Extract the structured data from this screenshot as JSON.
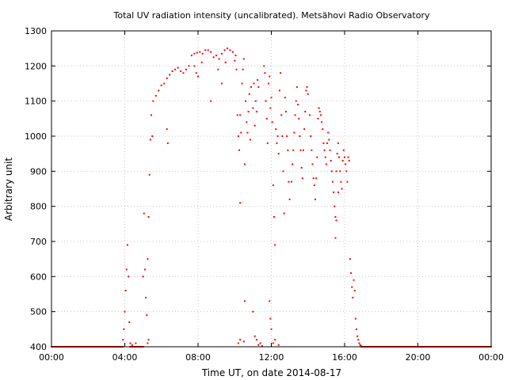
{
  "chart_data": {
    "type": "scatter",
    "title": "Total UV radiation intensity (uncalibrated). Metsähovi Radio Observatory",
    "xlabel": "Time UT, on date 2014-08-17",
    "ylabel": "Arbitrary unit",
    "xlim": [
      0,
      24
    ],
    "ylim": [
      400,
      1300
    ],
    "x_ticks": [
      0,
      4,
      8,
      12,
      16,
      20,
      24
    ],
    "x_tick_labels": [
      "00:00",
      "04:00",
      "08:00",
      "12:00",
      "16:00",
      "20:00",
      "00:00"
    ],
    "y_ticks": [
      400,
      500,
      600,
      700,
      800,
      900,
      1000,
      1100,
      1200,
      1300
    ],
    "y_tick_labels": [
      "400",
      "500",
      "600",
      "700",
      "800",
      "900",
      "1000",
      "1100",
      "1200",
      "1300"
    ],
    "grid": true,
    "marker_color": "#ff0000",
    "series": [
      {
        "points": [
          [
            3.9,
            420
          ],
          [
            3.95,
            450
          ],
          [
            4.0,
            500
          ],
          [
            4.05,
            560
          ],
          [
            4.1,
            620
          ],
          [
            4.15,
            690
          ],
          [
            4.2,
            600
          ],
          [
            4.25,
            470
          ],
          [
            4.3,
            410
          ],
          [
            4.4,
            405
          ],
          [
            4.6,
            410
          ],
          [
            4.8,
            400
          ],
          [
            5.0,
            600
          ],
          [
            5.05,
            780
          ],
          [
            5.1,
            620
          ],
          [
            5.15,
            540
          ],
          [
            5.2,
            490
          ],
          [
            5.25,
            650
          ],
          [
            5.3,
            770
          ],
          [
            5.35,
            890
          ],
          [
            5.4,
            990
          ],
          [
            5.45,
            1060
          ],
          [
            5.5,
            1000
          ],
          [
            5.25,
            410
          ],
          [
            5.3,
            420
          ],
          [
            5.55,
            1100
          ],
          [
            5.7,
            1115
          ],
          [
            5.85,
            1130
          ],
          [
            6.0,
            1145
          ],
          [
            6.15,
            1150
          ],
          [
            6.3,
            1165
          ],
          [
            6.45,
            1175
          ],
          [
            6.6,
            1185
          ],
          [
            6.75,
            1190
          ],
          [
            6.9,
            1195
          ],
          [
            7.05,
            1185
          ],
          [
            7.2,
            1180
          ],
          [
            7.35,
            1190
          ],
          [
            7.5,
            1200
          ],
          [
            7.65,
            1230
          ],
          [
            7.8,
            1235
          ],
          [
            7.95,
            1238
          ],
          [
            8.1,
            1240
          ],
          [
            8.25,
            1235
          ],
          [
            8.4,
            1245
          ],
          [
            8.55,
            1245
          ],
          [
            8.7,
            1240
          ],
          [
            8.85,
            1225
          ],
          [
            9.0,
            1230
          ],
          [
            9.15,
            1220
          ],
          [
            9.3,
            1235
          ],
          [
            9.45,
            1245
          ],
          [
            9.6,
            1250
          ],
          [
            9.75,
            1245
          ],
          [
            9.9,
            1240
          ],
          [
            10.05,
            1230
          ],
          [
            6.3,
            1020
          ],
          [
            6.35,
            980
          ],
          [
            7.8,
            1200
          ],
          [
            7.9,
            1180
          ],
          [
            8.0,
            1170
          ],
          [
            8.2,
            1210
          ],
          [
            8.7,
            1100
          ],
          [
            9.1,
            1190
          ],
          [
            9.3,
            1150
          ],
          [
            9.5,
            1210
          ],
          [
            10.0,
            1215
          ],
          [
            10.1,
            1190
          ],
          [
            10.15,
            1060
          ],
          [
            10.2,
            1000
          ],
          [
            10.25,
            960
          ],
          [
            10.3,
            1060
          ],
          [
            10.3,
            810
          ],
          [
            10.35,
            1010
          ],
          [
            10.4,
            1150
          ],
          [
            10.45,
            1190
          ],
          [
            10.5,
            1220
          ],
          [
            10.55,
            920
          ],
          [
            10.55,
            530
          ],
          [
            10.6,
            1100
          ],
          [
            10.65,
            1040
          ],
          [
            10.7,
            1010
          ],
          [
            10.75,
            1070
          ],
          [
            10.8,
            1120
          ],
          [
            10.85,
            990
          ],
          [
            10.9,
            1140
          ],
          [
            11.0,
            1080
          ],
          [
            11.05,
            1150
          ],
          [
            11.1,
            1030
          ],
          [
            11.15,
            1100
          ],
          [
            11.2,
            1070
          ],
          [
            11.25,
            1160
          ],
          [
            11.3,
            1140
          ],
          [
            10.2,
            410
          ],
          [
            10.3,
            420
          ],
          [
            10.5,
            415
          ],
          [
            11.0,
            500
          ],
          [
            11.1,
            430
          ],
          [
            11.2,
            420
          ],
          [
            11.3,
            405
          ],
          [
            11.4,
            410
          ],
          [
            11.5,
            402
          ],
          [
            11.6,
            1200
          ],
          [
            11.65,
            1180
          ],
          [
            11.7,
            1100
          ],
          [
            11.75,
            1050
          ],
          [
            11.8,
            980
          ],
          [
            11.85,
            1150
          ],
          [
            11.9,
            1170
          ],
          [
            11.95,
            1080
          ],
          [
            12.0,
            1110
          ],
          [
            12.05,
            1040
          ],
          [
            12.1,
            860
          ],
          [
            12.15,
            770
          ],
          [
            12.2,
            690
          ],
          [
            12.25,
            1020
          ],
          [
            12.3,
            980
          ],
          [
            12.35,
            1000
          ],
          [
            12.4,
            950
          ],
          [
            12.45,
            1130
          ],
          [
            12.5,
            1180
          ],
          [
            12.55,
            1060
          ],
          [
            12.6,
            1000
          ],
          [
            12.65,
            900
          ],
          [
            12.7,
            780
          ],
          [
            12.75,
            1110
          ],
          [
            12.8,
            1070
          ],
          [
            12.85,
            1000
          ],
          [
            12.9,
            960
          ],
          [
            12.95,
            870
          ],
          [
            11.9,
            530
          ],
          [
            11.95,
            480
          ],
          [
            12.0,
            450
          ],
          [
            12.1,
            410
          ],
          [
            12.2,
            420
          ],
          [
            12.4,
            405
          ],
          [
            13.0,
            820
          ],
          [
            13.1,
            870
          ],
          [
            13.15,
            920
          ],
          [
            13.2,
            960
          ],
          [
            13.25,
            1010
          ],
          [
            13.3,
            1060
          ],
          [
            13.35,
            1100
          ],
          [
            13.4,
            1140
          ],
          [
            13.45,
            1090
          ],
          [
            13.5,
            1050
          ],
          [
            13.55,
            1000
          ],
          [
            13.6,
            960
          ],
          [
            13.65,
            910
          ],
          [
            13.7,
            880
          ],
          [
            13.75,
            960
          ],
          [
            13.8,
            1020
          ],
          [
            13.85,
            1070
          ],
          [
            13.9,
            1130
          ],
          [
            13.95,
            1140
          ],
          [
            14.0,
            1120
          ],
          [
            14.1,
            1060
          ],
          [
            14.15,
            1000
          ],
          [
            14.2,
            960
          ],
          [
            14.25,
            920
          ],
          [
            14.3,
            880
          ],
          [
            14.35,
            860
          ],
          [
            14.4,
            820
          ],
          [
            14.45,
            880
          ],
          [
            14.5,
            940
          ],
          [
            14.55,
            1050
          ],
          [
            14.6,
            1080
          ],
          [
            14.65,
            1070
          ],
          [
            14.7,
            1060
          ],
          [
            14.75,
            1040
          ],
          [
            14.8,
            1020
          ],
          [
            14.85,
            980
          ],
          [
            14.9,
            960
          ],
          [
            14.95,
            940
          ],
          [
            15.0,
            920
          ],
          [
            15.05,
            980
          ],
          [
            15.1,
            1010
          ],
          [
            15.15,
            990
          ],
          [
            15.2,
            960
          ],
          [
            15.25,
            930
          ],
          [
            15.3,
            900
          ],
          [
            15.35,
            870
          ],
          [
            15.4,
            840
          ],
          [
            15.45,
            800
          ],
          [
            15.5,
            770
          ],
          [
            15.55,
            900
          ],
          [
            15.6,
            950
          ],
          [
            15.65,
            980
          ],
          [
            15.7,
            940
          ],
          [
            15.75,
            900
          ],
          [
            15.8,
            870
          ],
          [
            15.85,
            850
          ],
          [
            15.9,
            930
          ],
          [
            15.95,
            960
          ],
          [
            16.0,
            940
          ],
          [
            16.05,
            920
          ],
          [
            16.1,
            900
          ],
          [
            16.15,
            870
          ],
          [
            16.2,
            940
          ],
          [
            16.25,
            930
          ],
          [
            15.5,
            710
          ],
          [
            15.55,
            760
          ],
          [
            15.65,
            840
          ],
          [
            16.3,
            650
          ],
          [
            16.35,
            610
          ],
          [
            16.4,
            570
          ],
          [
            16.45,
            540
          ],
          [
            16.5,
            590
          ],
          [
            16.55,
            560
          ],
          [
            16.6,
            480
          ],
          [
            16.65,
            450
          ],
          [
            16.7,
            430
          ],
          [
            16.75,
            420
          ],
          [
            16.8,
            410
          ],
          [
            16.85,
            405
          ],
          [
            16.9,
            402
          ]
        ]
      }
    ],
    "baseline_segments": [
      {
        "from": 0,
        "to": 3.9,
        "value": 400
      },
      {
        "from": 4.3,
        "to": 5.0,
        "value": 400
      },
      {
        "from": 16.9,
        "to": 24,
        "value": 400
      }
    ]
  }
}
